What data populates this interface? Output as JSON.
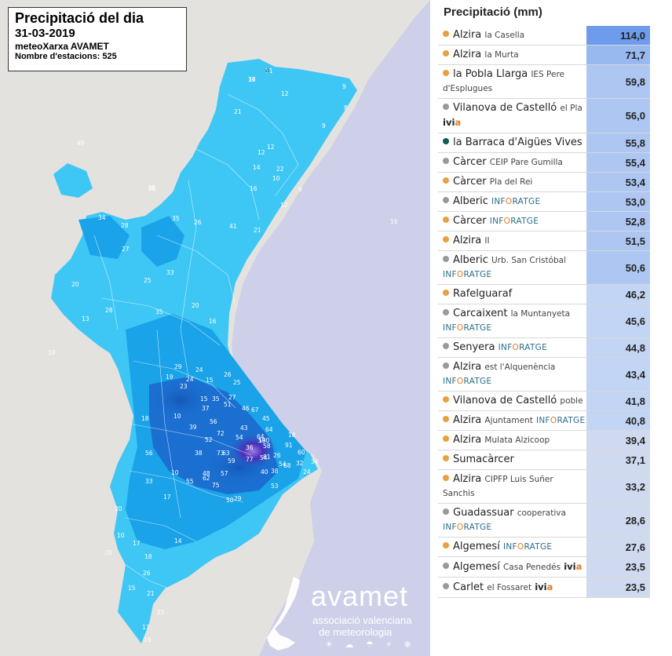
{
  "map_header": {
    "title": "Precipitació del dia",
    "date": "31-03-2019",
    "network": "meteoXarxa AVAMET",
    "stations": "Nombre d'estacions: 525"
  },
  "logo": {
    "word": "avamet",
    "line1": "associació valenciana",
    "line2": "de meteorologia",
    "icons": "☀ ☁ ☂ ⚡ ❄"
  },
  "colors": {
    "land": "#e4e2df",
    "sea": "#cdd0e8",
    "rain_low": "#3ec7f5",
    "rain_mid": "#1aa3e8",
    "rain_high": "#1b6fd0",
    "rain_peak": "#4b2fb8",
    "dot_orange": "#e6a23c",
    "dot_grey": "#9a9a9a",
    "dot_teal": "#0e5a5a"
  },
  "map_values": [
    "17",
    "11",
    "12",
    "21",
    "9",
    "8",
    "12",
    "14",
    "22",
    "16",
    "12",
    "10",
    "12",
    "6",
    "9",
    "41",
    "21",
    "28",
    "34",
    "27",
    "33",
    "26",
    "35",
    "49",
    "36",
    "25",
    "19",
    "20",
    "13",
    "28",
    "35",
    "20",
    "16",
    "29",
    "24",
    "24",
    "15",
    "15",
    "23",
    "19",
    "10",
    "18",
    "35",
    "51",
    "37",
    "26",
    "39",
    "56",
    "52",
    "27",
    "43",
    "54",
    "64",
    "36",
    "46",
    "72",
    "63",
    "57",
    "75",
    "56",
    "25",
    "59",
    "48",
    "50",
    "67",
    "45",
    "77",
    "29",
    "38",
    "68",
    "54",
    "58",
    "64",
    "26",
    "18",
    "190",
    "58",
    "81",
    "91",
    "60",
    "54",
    "40",
    "53",
    "62",
    "55",
    "73",
    "38",
    "24",
    "34",
    "32",
    "33",
    "20",
    "20",
    "10",
    "17",
    "26",
    "21",
    "25",
    "17",
    "19",
    "15",
    "18",
    "14",
    "10",
    "17",
    "18",
    "16",
    "36",
    "4"
  ],
  "panel": {
    "title": "Precipitació (mm)",
    "rows": [
      {
        "dot": "orange",
        "name": "Alzira",
        "sub": "la Casella",
        "net": "",
        "value": "114,0",
        "level": 5
      },
      {
        "dot": "orange",
        "name": "Alzira",
        "sub": "la Murta",
        "net": "",
        "value": "71,7",
        "level": 4
      },
      {
        "dot": "orange",
        "name": "la Pobla Llarga",
        "sub": "IES Pere d'Esplugues",
        "net": "",
        "value": "59,8",
        "level": 3
      },
      {
        "dot": "grey",
        "name": "Vilanova de Castelló",
        "sub": "el Pla",
        "net": "ivia",
        "value": "56,0",
        "level": 3
      },
      {
        "dot": "teal",
        "name": "la Barraca d'Aigües Vives",
        "sub": "",
        "net": "",
        "value": "55,8",
        "level": 3
      },
      {
        "dot": "grey",
        "name": "Càrcer",
        "sub": "CEIP Pare Gumilla",
        "net": "",
        "value": "55,4",
        "level": 3
      },
      {
        "dot": "orange",
        "name": "Càrcer",
        "sub": "Pla del Rei",
        "net": "",
        "value": "53,4",
        "level": 3
      },
      {
        "dot": "grey",
        "name": "Alberic",
        "sub": "",
        "net": "INFORATGE",
        "value": "53,0",
        "level": 3
      },
      {
        "dot": "orange",
        "name": "Càrcer",
        "sub": "",
        "net": "INFORATGE",
        "value": "52,8",
        "level": 3
      },
      {
        "dot": "orange",
        "name": "Alzira",
        "sub": "II",
        "net": "",
        "value": "51,5",
        "level": 3
      },
      {
        "dot": "grey",
        "name": "Alberic",
        "sub": "Urb. San Cristóbal",
        "net": "INFORATGE",
        "value": "50,6",
        "level": 3
      },
      {
        "dot": "orange",
        "name": "Rafelguaraf",
        "sub": "",
        "net": "",
        "value": "46,2",
        "level": 2
      },
      {
        "dot": "grey",
        "name": "Carcaixent",
        "sub": "la Muntanyeta",
        "net": "INFORATGE",
        "value": "45,6",
        "level": 2
      },
      {
        "dot": "grey",
        "name": "Senyera",
        "sub": "",
        "net": "INFORATGE",
        "value": "44,8",
        "level": 2
      },
      {
        "dot": "grey",
        "name": "Alzira",
        "sub": "est l'Alquenència",
        "net": "INFORATGE",
        "value": "43,4",
        "level": 2
      },
      {
        "dot": "orange",
        "name": "Vilanova de Castelló",
        "sub": "poble",
        "net": "",
        "value": "41,8",
        "level": 2
      },
      {
        "dot": "orange",
        "name": "Alzira",
        "sub": "Ajuntament",
        "net": "INFORATGE",
        "value": "40,8",
        "level": 2
      },
      {
        "dot": "orange",
        "name": "Alzira",
        "sub": "Mulata Alzicoop",
        "net": "",
        "value": "39,4",
        "level": 1
      },
      {
        "dot": "orange",
        "name": "Sumacàrcer",
        "sub": "",
        "net": "",
        "value": "37,1",
        "level": 1
      },
      {
        "dot": "orange",
        "name": "Alzira",
        "sub": "CIPFP Luis Suñer Sanchis",
        "net": "",
        "value": "33,2",
        "level": 1
      },
      {
        "dot": "grey",
        "name": "Guadassuar",
        "sub": "cooperativa",
        "net": "INFORATGE",
        "value": "28,6",
        "level": 1
      },
      {
        "dot": "orange",
        "name": "Algemesí",
        "sub": "",
        "net": "INFORATGE",
        "value": "27,6",
        "level": 1
      },
      {
        "dot": "grey",
        "name": "Algemesí",
        "sub": "Casa Penedés",
        "net": "ivia",
        "value": "23,5",
        "level": 1
      },
      {
        "dot": "grey",
        "name": "Carlet",
        "sub": "el Fossaret",
        "net": "ivia",
        "value": "23,5",
        "level": 1
      }
    ]
  }
}
